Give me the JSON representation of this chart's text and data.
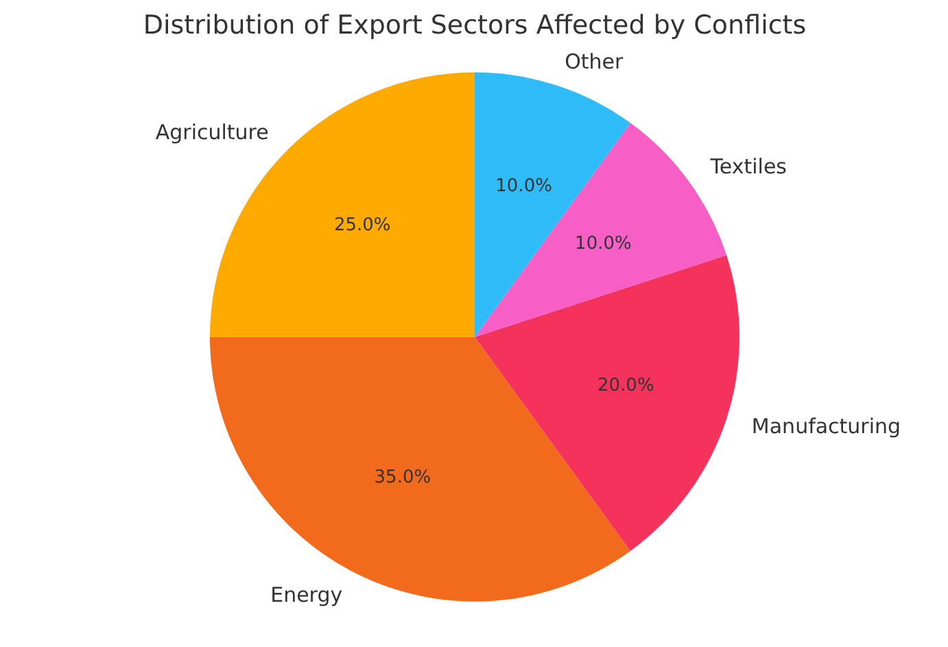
{
  "chart_data": {
    "type": "pie",
    "title": "Distribution of Export Sectors Affected by Conflicts",
    "categories": [
      "Agriculture",
      "Energy",
      "Manufacturing",
      "Textiles",
      "Other"
    ],
    "values": [
      25,
      35,
      20,
      10,
      10
    ],
    "colors": [
      "#ffaa00",
      "#f26b1d",
      "#f5325b",
      "#f75fc6",
      "#2ebbf7"
    ],
    "value_labels": [
      "25.0%",
      "35.0%",
      "20.0%",
      "10.0%",
      "10.0%"
    ]
  }
}
